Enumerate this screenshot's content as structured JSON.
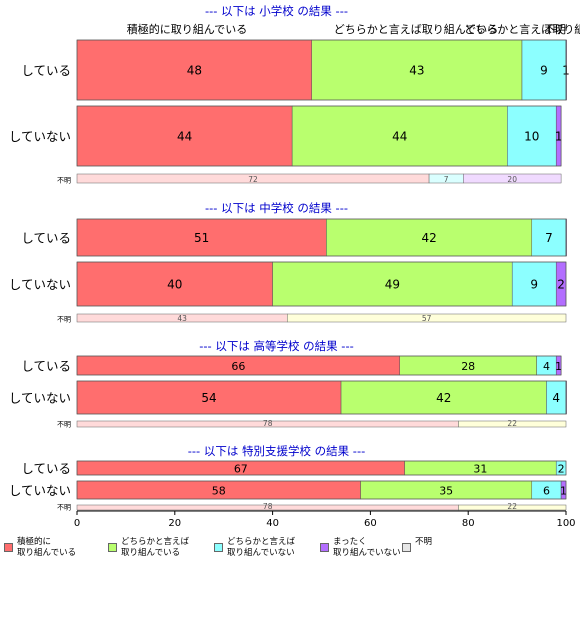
{
  "colors": {
    "strong": "#FF6E6E",
    "some": "#B9FF6E",
    "weak": "#8CFFFF",
    "none": "#B36EFF",
    "unknown": "#E6E6E6",
    "title": "#0000CC"
  },
  "chart_data": {
    "type": "bar",
    "orientation": "horizontal",
    "stacked": true,
    "x_ticks": [
      "0",
      "20",
      "40",
      "60",
      "80",
      "100"
    ],
    "xlim": [
      0,
      100
    ],
    "legend_position": "bottom-left",
    "legend": [
      {
        "key": "strong",
        "label": "積極的に\n取り組んでいる"
      },
      {
        "key": "some",
        "label": "どちらかと言えば\n取り組んでいる"
      },
      {
        "key": "weak",
        "label": "どちらかと言えば\n取り組んでいない"
      },
      {
        "key": "none",
        "label": "まったく\n取り組んでいない"
      },
      {
        "key": "unknown",
        "label": "不明"
      }
    ],
    "top_category_labels": [
      "積極的に取り組んでいる",
      "どちらかと言えば取り組んでいる",
      "どちらかと言えば取り組んでいない",
      "不明"
    ],
    "panels": [
      {
        "title": "--- 以下は 小学校 の結果 ---",
        "rows": [
          {
            "label": "している",
            "values": [
              48,
              43,
              9,
              1,
              0
            ]
          },
          {
            "label": "していない",
            "values": [
              44,
              44,
              10,
              1,
              0
            ]
          }
        ],
        "unknown_row": {
          "label": "不明",
          "values": [
            72,
            7,
            20
          ]
        }
      },
      {
        "title": "--- 以下は 中学校 の結果 ---",
        "rows": [
          {
            "label": "している",
            "values": [
              51,
              42,
              7,
              0.5,
              0
            ]
          },
          {
            "label": "していない",
            "values": [
              40,
              49,
              9,
              2,
              0
            ]
          }
        ],
        "unknown_row": {
          "label": "不明",
          "values": [
            43,
            57
          ]
        }
      },
      {
        "title": "--- 以下は 高等学校 の結果 ---",
        "rows": [
          {
            "label": "している",
            "values": [
              66,
              28,
              4,
              1,
              0
            ]
          },
          {
            "label": "していない",
            "values": [
              54,
              42,
              4,
              0.5,
              0
            ]
          }
        ],
        "unknown_row": {
          "label": "不明",
          "values": [
            78,
            22
          ]
        }
      },
      {
        "title": "--- 以下は 特別支援学校 の結果 ---",
        "rows": [
          {
            "label": "している",
            "values": [
              67,
              31,
              2,
              0,
              0
            ]
          },
          {
            "label": "していない",
            "values": [
              58,
              35,
              6,
              1,
              0
            ]
          }
        ],
        "unknown_row": {
          "label": "不明",
          "values": [
            78,
            22
          ]
        }
      }
    ]
  }
}
